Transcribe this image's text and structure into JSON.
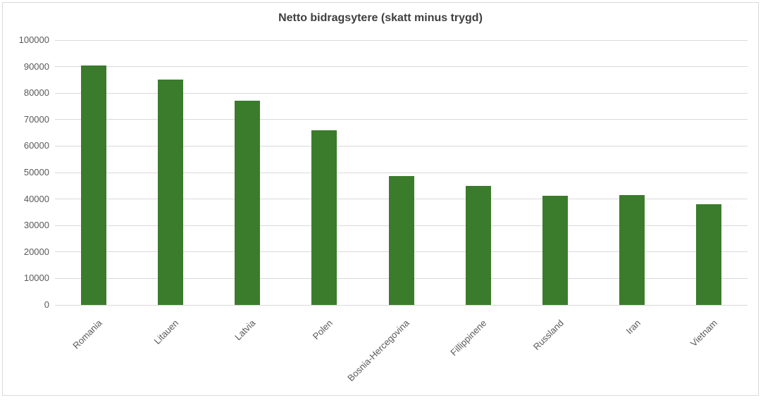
{
  "chart_data": {
    "type": "bar",
    "title": "Netto bidragsytere (skatt minus trygd)",
    "categories": [
      "Romania",
      "Litauen",
      "Latvia",
      "Polen",
      "Bosnia-Hercegovina",
      "Fillippinene",
      "Russland",
      "Iran",
      "Vietnam"
    ],
    "values": [
      90400,
      85200,
      77100,
      66000,
      48700,
      45000,
      41300,
      41400,
      38000
    ],
    "xlabel": "",
    "ylabel": "",
    "ylim": [
      0,
      100000
    ],
    "y_ticks": [
      0,
      10000,
      20000,
      30000,
      40000,
      50000,
      60000,
      70000,
      80000,
      90000,
      100000
    ],
    "grid": true,
    "legend": "none",
    "colors": {
      "bar": "#3a7c2b",
      "gridline": "#d9d9d9",
      "border": "#d9d9d9",
      "title_text": "#3f3f3f",
      "axis_text": "#595959",
      "background": "#ffffff"
    }
  }
}
